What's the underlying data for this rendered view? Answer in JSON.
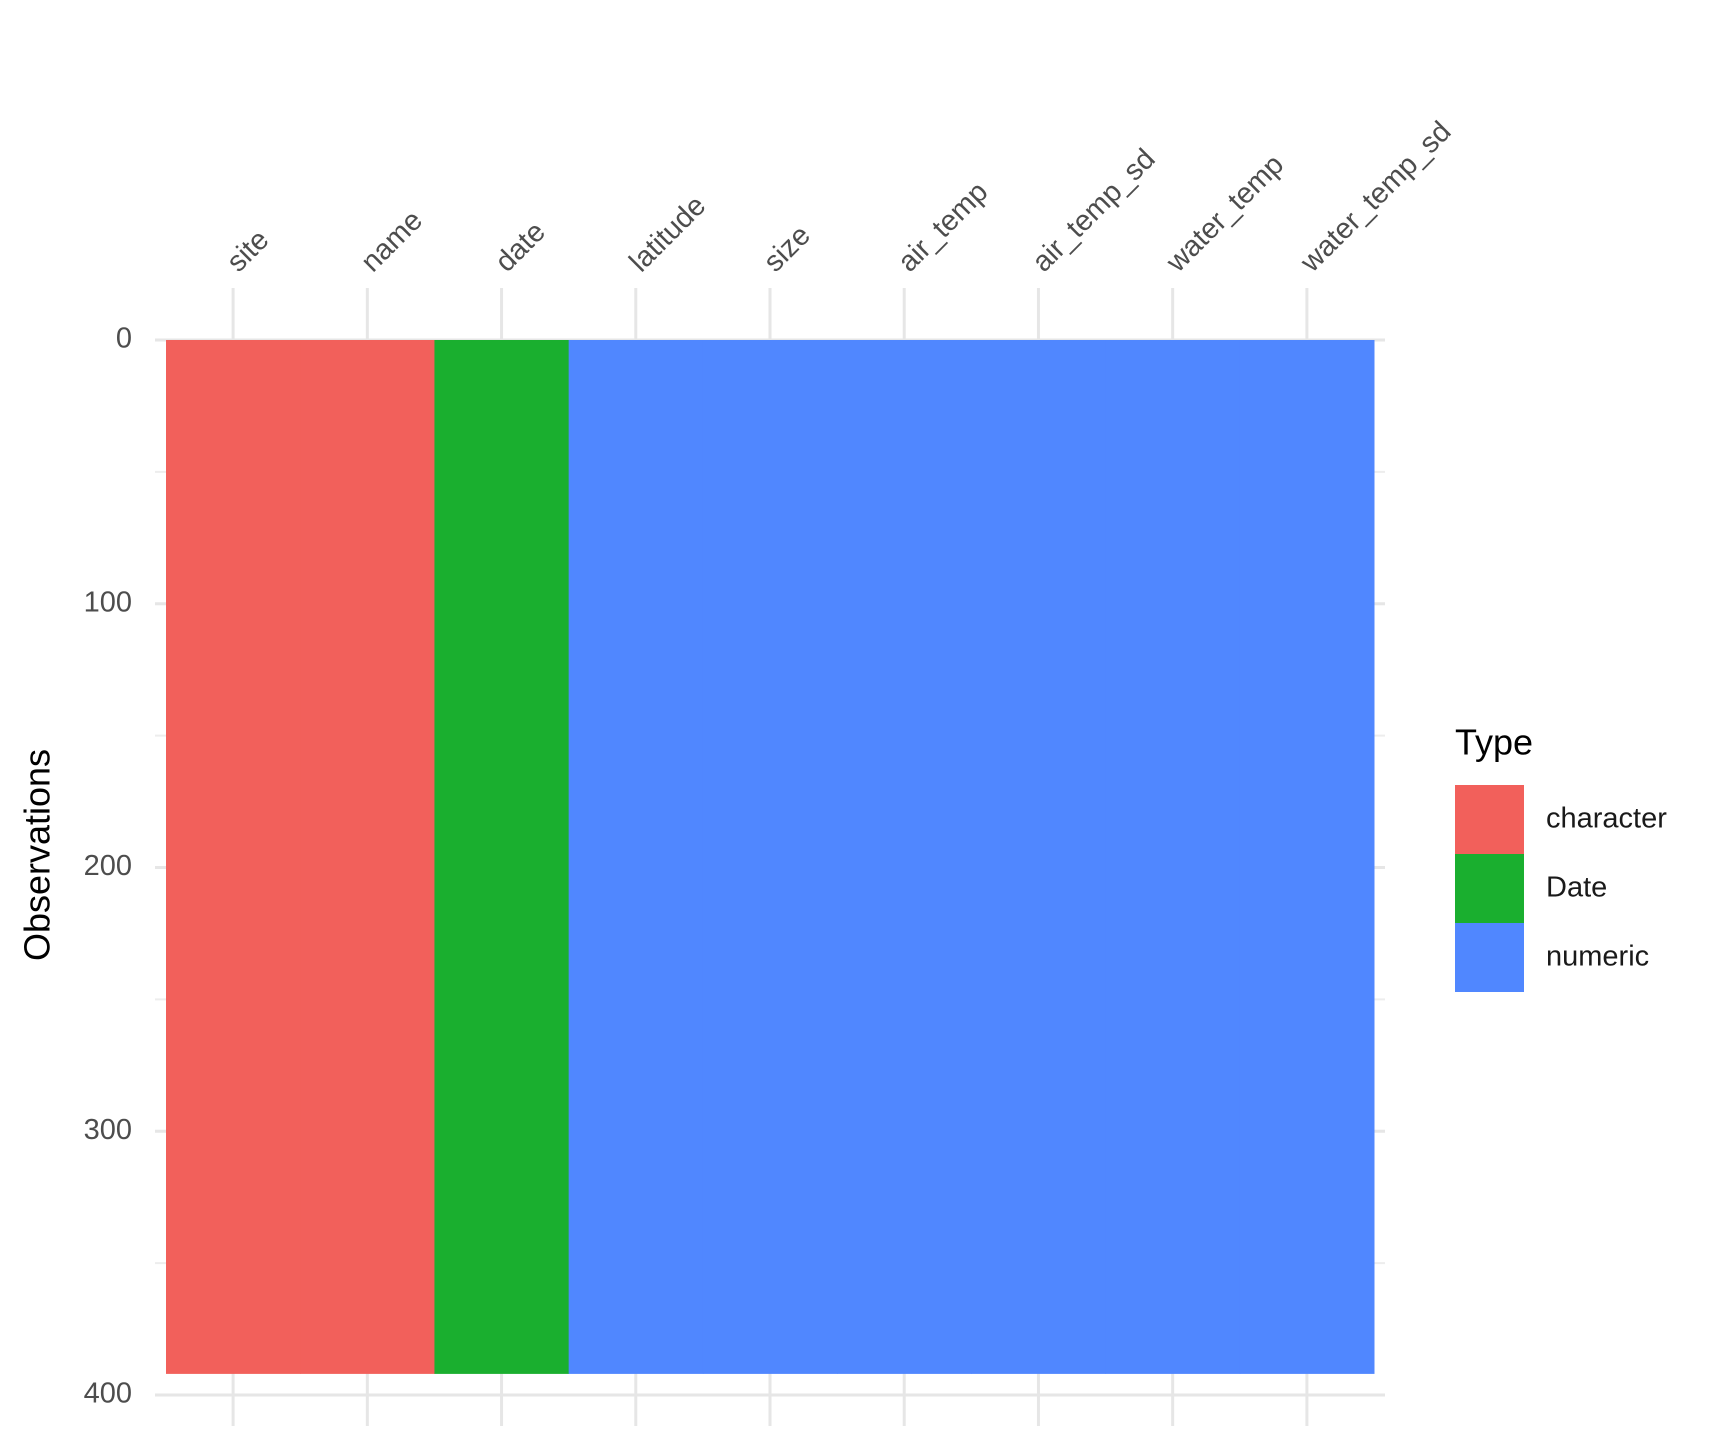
{
  "chart_data": {
    "type": "heatmap",
    "y_label": "Observations",
    "legend_title": "Type",
    "categories": [
      "site",
      "name",
      "date",
      "latitude",
      "size",
      "air_temp",
      "air_temp_sd",
      "water_temp",
      "water_temp_sd"
    ],
    "series": [
      {
        "name": "character",
        "color": "#F2605B",
        "values": [
          392,
          392,
          null,
          null,
          null,
          null,
          null,
          null,
          null
        ]
      },
      {
        "name": "Date",
        "color": "#1AAF2F",
        "values": [
          null,
          null,
          392,
          null,
          null,
          null,
          null,
          null,
          null
        ]
      },
      {
        "name": "numeric",
        "color": "#5087FF",
        "values": [
          null,
          null,
          null,
          392,
          392,
          392,
          392,
          392,
          392
        ]
      }
    ],
    "ylim": [
      0,
      400
    ],
    "yticks": [
      0,
      100,
      200,
      300,
      400
    ],
    "y_minor_ticks": [
      50,
      150,
      250,
      350
    ],
    "y_reversed": true,
    "grid": true,
    "legend_position": "right"
  }
}
